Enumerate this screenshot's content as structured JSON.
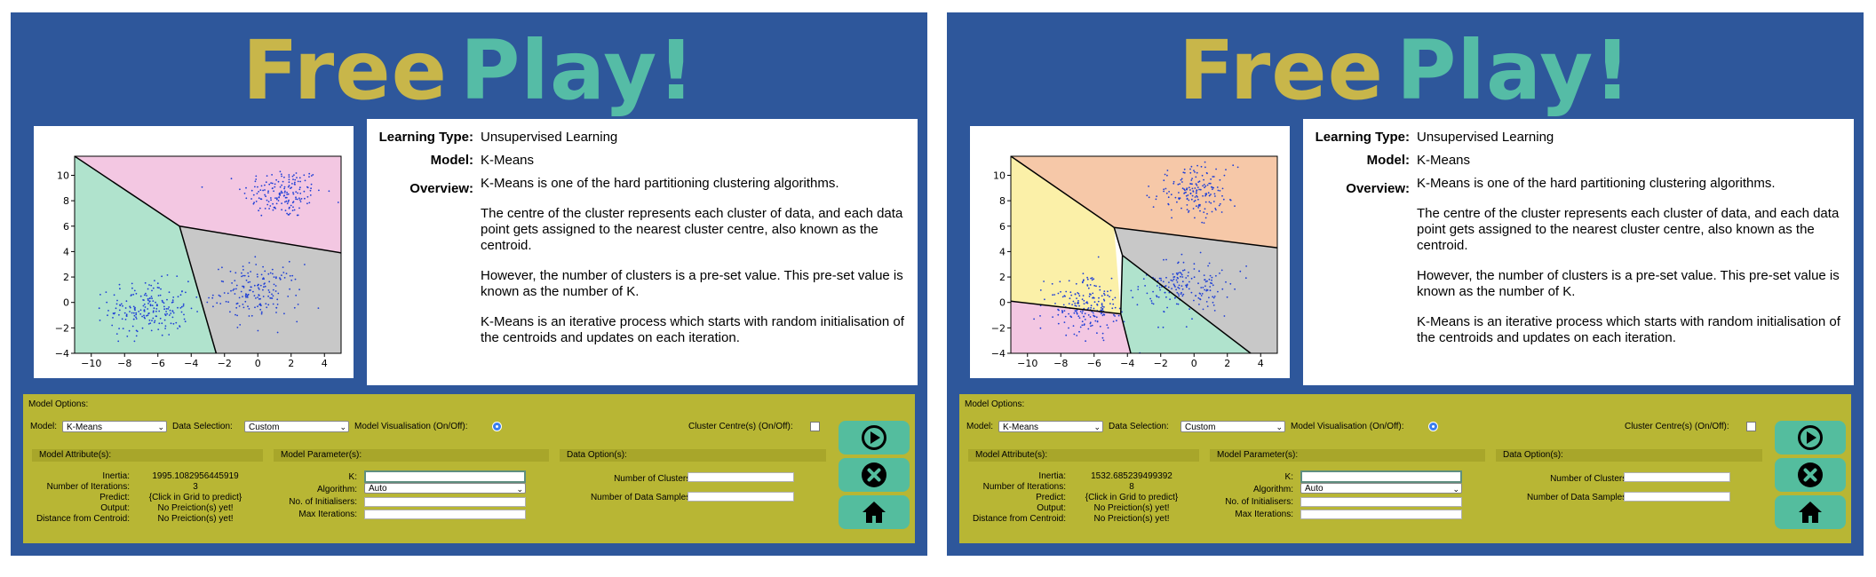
{
  "colors": {
    "panel_bg": "#2e579b",
    "title_free": "#c8b64a",
    "title_play": "#55bca6",
    "options_bg": "#b8b634",
    "button_bg": "#54bd9e",
    "accent_radio": "#3a7ef0"
  },
  "panels": [
    {
      "title": {
        "word1": "Free",
        "word2": "Play!"
      },
      "info": {
        "learning_type_label": "Learning Type:",
        "learning_type": "Unsupervised Learning",
        "model_label": "Model:",
        "model": "K-Means",
        "overview_label": "Overview:",
        "overview": [
          "K-Means is one of the hard partitioning clustering algorithms.",
          "The centre of the cluster represents each cluster of data, and each data point gets assigned to the nearest cluster centre, also known as the centroid.",
          "However, the number of clusters is a pre-set value. This pre-set value is known as the number of K.",
          "K-Means is an iterative process which starts with random initialisation of the centroids and updates on each iteration."
        ]
      },
      "options": {
        "title": "Model Options:",
        "model_label": "Model:",
        "model_value": "K-Means",
        "data_selection_label": "Data Selection:",
        "data_selection_value": "Custom",
        "visualisation_label": "Model Visualisation (On/Off):",
        "cluster_centre_label": "Cluster Centre(s) (On/Off):",
        "attributes_header": "Model Attribute(s):",
        "attributes": [
          {
            "label": "Inertia:",
            "value": "1995.1082956445919"
          },
          {
            "label": "Number of Iterations:",
            "value": "3"
          },
          {
            "label": "Predict:",
            "value": "{Click in Grid to predict}"
          },
          {
            "label": "Output:",
            "value": "No Preiction(s) yet!"
          },
          {
            "label": "Distance from Centroid:",
            "value": "No Preiction(s) yet!"
          }
        ],
        "parameters_header": "Model Parameter(s):",
        "k_label": "K:",
        "algorithm_label": "Algorithm:",
        "algorithm_value": "Auto",
        "initialisers_label": "No. of Initialisers:",
        "max_iter_label": "Max Iterations:",
        "data_header": "Data Option(s):",
        "clusters_label": "Number of Clusters:",
        "samples_label": "Number of Data Samples:"
      },
      "chart_data": {
        "type": "scatter",
        "title": "",
        "xlabel": "",
        "ylabel": "",
        "xlim": [
          -11,
          5
        ],
        "ylim": [
          -4,
          11.5
        ],
        "xticks": [
          "−10",
          "−8",
          "−6",
          "−4",
          "−2",
          "0",
          "2",
          "4"
        ],
        "yticks": [
          "10",
          "8",
          "6",
          "4",
          "2",
          "0",
          "−2",
          "−4"
        ],
        "regions": [
          {
            "color": "#f3c7e2",
            "polygon": [
              [
                -11,
                11.5
              ],
              [
                5,
                11.5
              ],
              [
                5,
                3.9
              ],
              [
                -4.7,
                6
              ]
            ]
          },
          {
            "color": "#b0e3cd",
            "polygon": [
              [
                -11,
                11.5
              ],
              [
                -4.7,
                6
              ],
              [
                -2.5,
                -4
              ],
              [
                -11,
                -4
              ]
            ]
          },
          {
            "color": "#c8c8c8",
            "polygon": [
              [
                -4.7,
                6
              ],
              [
                5,
                3.9
              ],
              [
                5,
                -4
              ],
              [
                -2.5,
                -4
              ]
            ]
          }
        ],
        "boundaries": [
          [
            [
              -11,
              11.5
            ],
            [
              -4.7,
              6
            ]
          ],
          [
            [
              -4.7,
              6
            ],
            [
              5,
              3.9
            ]
          ],
          [
            [
              -4.7,
              6
            ],
            [
              -2.5,
              -4
            ]
          ]
        ],
        "clusters": [
          {
            "center": [
              1.5,
              8.6
            ],
            "spread": [
              1.2,
              1.0
            ],
            "n": 170
          },
          {
            "center": [
              -6.5,
              -0.5
            ],
            "spread": [
              1.2,
              1.1
            ],
            "n": 200
          },
          {
            "center": [
              0,
              0.8
            ],
            "spread": [
              1.3,
              1.1
            ],
            "n": 170
          }
        ],
        "point_color": "#1f3fd6"
      }
    },
    {
      "title": {
        "word1": "Free",
        "word2": "Play!"
      },
      "info": {
        "learning_type_label": "Learning Type:",
        "learning_type": "Unsupervised Learning",
        "model_label": "Model:",
        "model": "K-Means",
        "overview_label": "Overview:",
        "overview": [
          "K-Means is one of the hard partitioning clustering algorithms.",
          "The centre of the cluster represents each cluster of data, and each data point gets assigned to the nearest cluster centre, also known as the centroid.",
          "However, the number of clusters is a pre-set value. This pre-set value is known as the number of K.",
          "K-Means is an iterative process which starts with random initialisation of the centroids and updates on each iteration."
        ]
      },
      "options": {
        "title": "Model Options:",
        "model_label": "Model:",
        "model_value": "K-Means",
        "data_selection_label": "Data Selection:",
        "data_selection_value": "Custom",
        "visualisation_label": "Model Visualisation (On/Off):",
        "cluster_centre_label": "Cluster Centre(s) (On/Off):",
        "attributes_header": "Model Attribute(s):",
        "attributes": [
          {
            "label": "Inertia:",
            "value": "1532.685239499392"
          },
          {
            "label": "Number of Iterations:",
            "value": "8"
          },
          {
            "label": "Predict:",
            "value": "{Click in Grid to predict}"
          },
          {
            "label": "Output:",
            "value": "No Preiction(s) yet!"
          },
          {
            "label": "Distance from Centroid:",
            "value": "No Preiction(s) yet!"
          }
        ],
        "parameters_header": "Model Parameter(s):",
        "k_label": "K:",
        "algorithm_label": "Algorithm:",
        "algorithm_value": "Auto",
        "initialisers_label": "No. of Initialisers:",
        "max_iter_label": "Max Iterations:",
        "data_header": "Data Option(s):",
        "clusters_label": "Number of Clusters:",
        "samples_label": "Number of Data Samples:"
      },
      "chart_data": {
        "type": "scatter",
        "title": "",
        "xlabel": "",
        "ylabel": "",
        "xlim": [
          -11,
          5
        ],
        "ylim": [
          -4,
          11.5
        ],
        "xticks": [
          "−10",
          "−8",
          "−6",
          "−4",
          "−2",
          "0",
          "2",
          "4"
        ],
        "yticks": [
          "10",
          "8",
          "6",
          "4",
          "2",
          "0",
          "−2",
          "−4"
        ],
        "regions": [
          {
            "color": "#f6c8a8",
            "polygon": [
              [
                -11,
                11.5
              ],
              [
                5,
                11.5
              ],
              [
                5,
                4.3
              ],
              [
                -4.8,
                5.9
              ]
            ]
          },
          {
            "color": "#fbf0a8",
            "polygon": [
              [
                -11,
                11.5
              ],
              [
                -4.8,
                5.9
              ],
              [
                -4.4,
                -0.9
              ],
              [
                -11,
                0.1
              ]
            ]
          },
          {
            "color": "#f3c7e2",
            "polygon": [
              [
                -11,
                0.1
              ],
              [
                -4.4,
                -0.9
              ],
              [
                -3.8,
                -4
              ],
              [
                -11,
                -4
              ]
            ]
          },
          {
            "color": "#b0e3cd",
            "polygon": [
              [
                -4.4,
                -0.9
              ],
              [
                -4.3,
                3.7
              ],
              [
                3.4,
                -4
              ],
              [
                -3.8,
                -4
              ]
            ]
          },
          {
            "color": "#c8c8c8",
            "polygon": [
              [
                -4.8,
                5.9
              ],
              [
                5,
                4.3
              ],
              [
                5,
                -4
              ],
              [
                3.4,
                -4
              ],
              [
                -4.3,
                3.7
              ]
            ]
          }
        ],
        "boundaries": [
          [
            [
              -11,
              11.5
            ],
            [
              -4.8,
              5.9
            ]
          ],
          [
            [
              -4.8,
              5.9
            ],
            [
              5,
              4.3
            ]
          ],
          [
            [
              -4.8,
              5.9
            ],
            [
              -4.3,
              3.7
            ]
          ],
          [
            [
              -4.3,
              3.7
            ],
            [
              3.4,
              -4
            ]
          ],
          [
            [
              -4.3,
              3.7
            ],
            [
              -4.4,
              -0.9
            ]
          ],
          [
            [
              -11,
              0.1
            ],
            [
              -4.4,
              -0.9
            ]
          ],
          [
            [
              -4.4,
              -0.9
            ],
            [
              -3.8,
              -4
            ]
          ]
        ],
        "clusters": [
          {
            "center": [
              0,
              8.7
            ],
            "spread": [
              1.2,
              1.0
            ],
            "n": 170
          },
          {
            "center": [
              -6.5,
              -0.3
            ],
            "spread": [
              1.2,
              1.1
            ],
            "n": 200
          },
          {
            "center": [
              -0.3,
              1.2
            ],
            "spread": [
              1.3,
              1.1
            ],
            "n": 170
          }
        ],
        "point_color": "#1f3fd6"
      }
    }
  ]
}
